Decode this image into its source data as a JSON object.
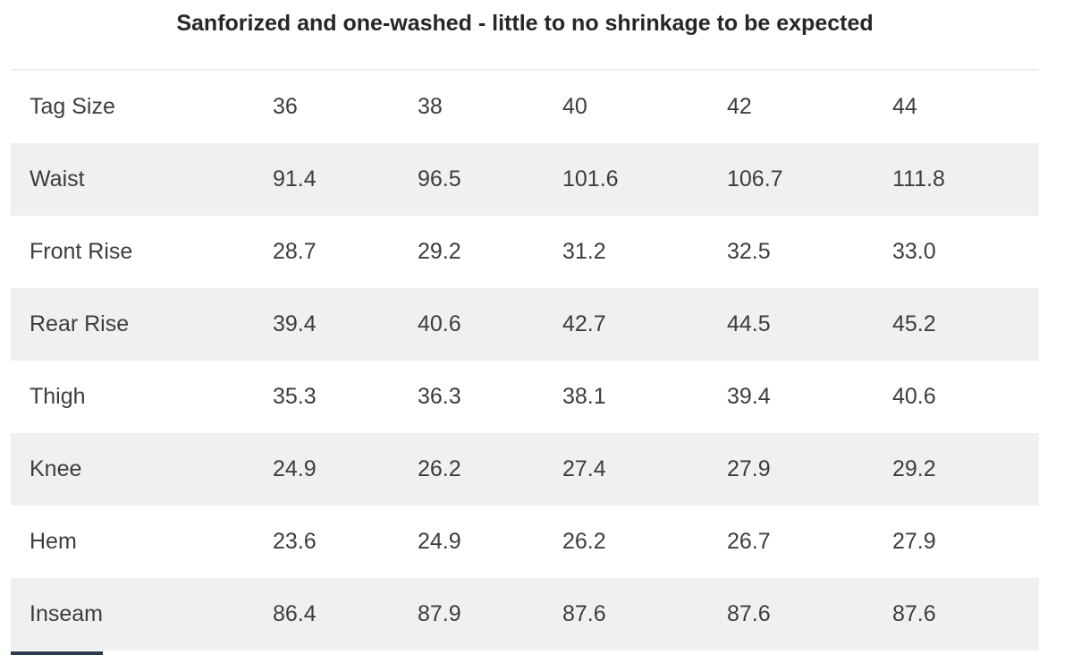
{
  "title": "Sanforized and one-washed - little to no shrinkage to be expected",
  "chart_data": {
    "type": "table",
    "title": "Sanforized and one-washed - little to no shrinkage to be expected",
    "header": {
      "label": "Tag Size",
      "values": [
        "36",
        "38",
        "40",
        "42",
        "44"
      ]
    },
    "rows": [
      {
        "label": "Waist",
        "values": [
          "91.4",
          "96.5",
          "101.6",
          "106.7",
          "111.8"
        ]
      },
      {
        "label": "Front Rise",
        "values": [
          "28.7",
          "29.2",
          "31.2",
          "32.5",
          "33.0"
        ]
      },
      {
        "label": "Rear Rise",
        "values": [
          "39.4",
          "40.6",
          "42.7",
          "44.5",
          "45.2"
        ]
      },
      {
        "label": "Thigh",
        "values": [
          "35.3",
          "36.3",
          "38.1",
          "39.4",
          "40.6"
        ]
      },
      {
        "label": "Knee",
        "values": [
          "24.9",
          "26.2",
          "27.4",
          "27.9",
          "29.2"
        ]
      },
      {
        "label": "Hem",
        "values": [
          "23.6",
          "24.9",
          "26.2",
          "26.7",
          "27.9"
        ]
      },
      {
        "label": "Inseam",
        "values": [
          "86.4",
          "87.9",
          "87.6",
          "87.6",
          "87.6"
        ]
      }
    ],
    "layout": {
      "grid": "off",
      "row_striping": true,
      "stripe_rows": [
        "Waist",
        "Rear Rise",
        "Knee",
        "Inseam"
      ]
    }
  },
  "colors": {
    "row_stripe": "#eff0f1",
    "top_border": "#ececec",
    "body_text": "#3d3d3d",
    "title_text": "#262626",
    "partial_bar": "#2e3b4e",
    "background": "#ffffff"
  }
}
